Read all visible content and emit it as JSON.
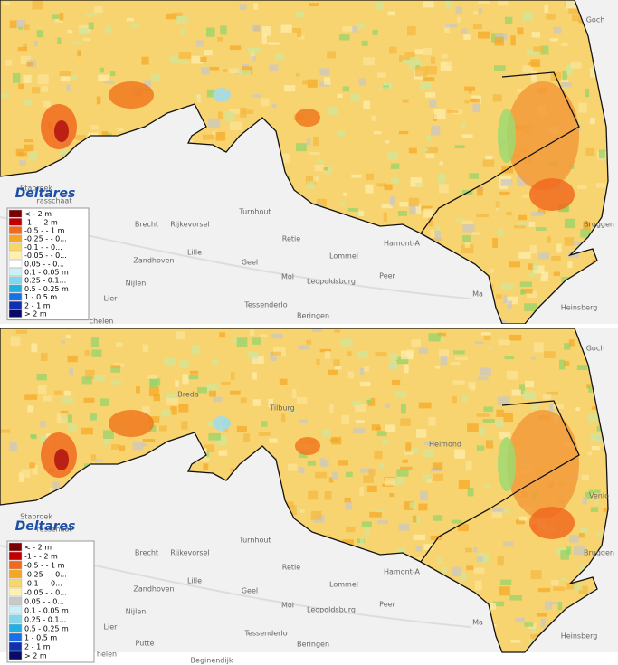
{
  "panels": [
    {
      "logo": "Deltares",
      "legend": [
        {
          "label": "< - 2 m",
          "color": "#7a0000"
        },
        {
          "label": "-1 - - 2 m",
          "color": "#c00000"
        },
        {
          "label": "-0.5 - - 1 m",
          "color": "#f06a1e"
        },
        {
          "label": "-0.25 - - 0...",
          "color": "#f5a623"
        },
        {
          "label": "-0.1 - - 0...",
          "color": "#f8d66a"
        },
        {
          "label": "-0.05 - - 0...",
          "color": "#fdf0b0"
        },
        {
          "label": "0.05 - - 0...",
          "color": "#ffffff"
        },
        {
          "label": "0.1 - 0.05 m",
          "color": "#c8f2f8"
        },
        {
          "label": "0.25 - 0.1...",
          "color": "#7fd8ee"
        },
        {
          "label": "0.5 - 0.25 m",
          "color": "#22b0e0"
        },
        {
          "label": "1 - 0.5 m",
          "color": "#1a6fe8"
        },
        {
          "label": "2 - 1 m",
          "color": "#1030b0"
        },
        {
          "label": "> 2 m",
          "color": "#0a0a60"
        }
      ],
      "places": [
        "Stabroek",
        "rasschaat",
        "Brecht",
        "Rijkevorsel",
        "Turnhout",
        "Lille",
        "Zandhoven",
        "Retie",
        "Mol",
        "Geel",
        "Lommel",
        "Hamont-A",
        "Nijlen",
        "Lier",
        "Leopoldsburg",
        "Peer",
        "Tessenderlo",
        "Beringen",
        "Bruggen",
        "Heinsberg",
        "Goch",
        "Ma",
        "chelen"
      ]
    },
    {
      "logo": "Deltares",
      "legend": [
        {
          "label": "< - 2 m",
          "color": "#7a0000"
        },
        {
          "label": "-1 - - 2 m",
          "color": "#c00000"
        },
        {
          "label": "-0.5 - - 1 m",
          "color": "#f06a1e"
        },
        {
          "label": "-0.25 - - 0...",
          "color": "#f5a623"
        },
        {
          "label": "-0.1 - - 0...",
          "color": "#f8d66a"
        },
        {
          "label": "-0.05 - - 0...",
          "color": "#fdf0b0"
        },
        {
          "label": "0.05 - - 0...",
          "color": "#c8c8c8"
        },
        {
          "label": "0.1 - 0.05 m",
          "color": "#c8f2f8"
        },
        {
          "label": "0.25 - 0.1...",
          "color": "#7fd8ee"
        },
        {
          "label": "0.5 - 0.25 m",
          "color": "#22b0e0"
        },
        {
          "label": "1 - 0.5 m",
          "color": "#1a6fe8"
        },
        {
          "label": "2 - 1 m",
          "color": "#1030b0"
        },
        {
          "label": "> 2 m",
          "color": "#0a0a60"
        }
      ],
      "places": [
        "Stabroek",
        "rasschaat",
        "Brecht",
        "Rijkevorsel",
        "Turnhout",
        "Lille",
        "Zandhoven",
        "Retie",
        "Mol",
        "Geel",
        "Lommel",
        "Hamont-A",
        "Nijlen",
        "Lier",
        "Leopoldsburg",
        "Peer",
        "Tessenderlo",
        "Beringen",
        "Bruggen",
        "Heinsberg",
        "Goch",
        "Ma",
        "helen",
        "Putte",
        "Beginendijk",
        "Breda",
        "Tilburg",
        "Helmond",
        "Venlo"
      ]
    }
  ]
}
